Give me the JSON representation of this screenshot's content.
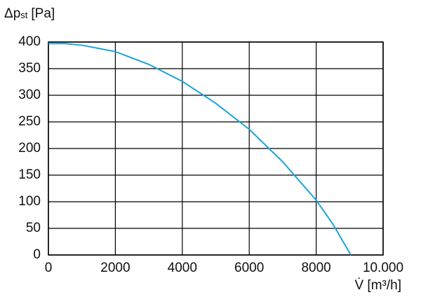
{
  "chart_data": {
    "type": "line",
    "ylabel_main": "Δp",
    "ylabel_sub": "st",
    "ylabel_unit": "[Pa]",
    "xlabel": "V̇ [m³/h]",
    "x": [
      0,
      500,
      1000,
      2000,
      3000,
      4000,
      5000,
      6000,
      7000,
      8000,
      8500,
      9036
    ],
    "values": [
      397,
      397,
      394,
      382,
      358,
      326,
      285,
      236,
      175,
      103,
      58,
      0
    ],
    "color": "#1ba3dc",
    "xlim": [
      0,
      10000
    ],
    "xticks": [
      0,
      2000,
      4000,
      6000,
      8000,
      {
        "value": 10000,
        "label": "10.000"
      }
    ],
    "ylim": [
      0,
      400
    ],
    "yticks": [
      0,
      50,
      100,
      150,
      200,
      250,
      300,
      350,
      400
    ],
    "grid": true
  }
}
